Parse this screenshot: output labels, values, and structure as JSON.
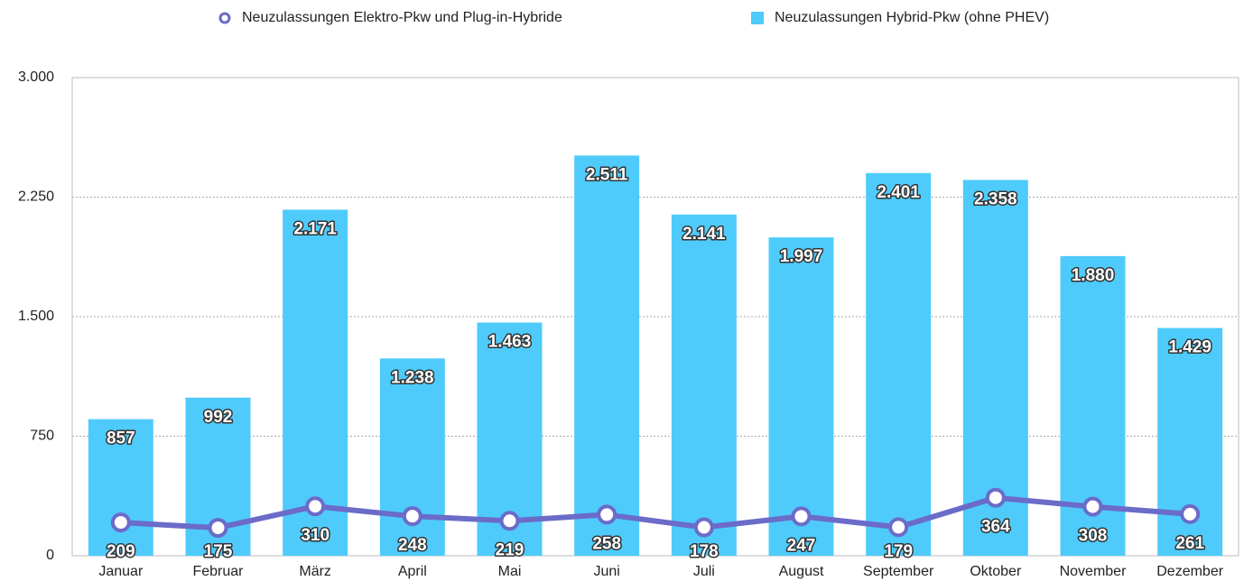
{
  "chart_data": {
    "type": "bar",
    "categories": [
      "Januar",
      "Februar",
      "März",
      "April",
      "Mai",
      "Juni",
      "Juli",
      "August",
      "September",
      "Oktober",
      "November",
      "Dezember"
    ],
    "series": [
      {
        "name": "Neuzulassungen Elektro-Pkw und Plug-in-Hybride",
        "type": "line",
        "color": "#6b6bc9",
        "values": [
          209,
          175,
          310,
          248,
          219,
          258,
          178,
          247,
          179,
          364,
          308,
          261
        ]
      },
      {
        "name": "Neuzulassungen Hybrid-Pkw (ohne PHEV)",
        "type": "bar",
        "color": "#4ecbfb",
        "values": [
          857,
          992,
          2171,
          1238,
          1463,
          2511,
          2141,
          1997,
          2401,
          2358,
          1880,
          1429
        ],
        "value_labels": [
          "857",
          "992",
          "2.171",
          "1.238",
          "1.463",
          "2.511",
          "2.141",
          "1.997",
          "2.401",
          "2.358",
          "1.880",
          "1.429"
        ]
      }
    ],
    "ylim": [
      0,
      3000
    ],
    "yticks": [
      0,
      {
        "value": 750,
        "label": "750"
      },
      {
        "value": 1500,
        "label": "1.500"
      },
      {
        "value": 2250,
        "label": "2.250"
      },
      {
        "value": 3000,
        "label": "3.000"
      }
    ],
    "grid": true
  }
}
